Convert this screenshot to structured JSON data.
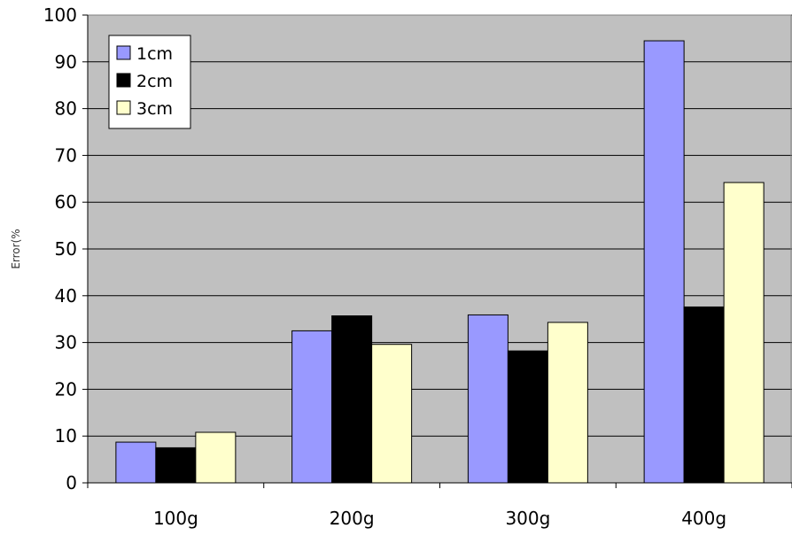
{
  "chart_data": {
    "type": "bar",
    "title": "",
    "xlabel": "",
    "ylabel": "Error(%",
    "categories": [
      "100g",
      "200g",
      "300g",
      "400g"
    ],
    "series": [
      {
        "name": "1cm",
        "color": "#9999ff",
        "values": [
          8.7,
          32.5,
          35.9,
          94.5
        ]
      },
      {
        "name": "2cm",
        "color": "#000000",
        "values": [
          7.5,
          35.7,
          28.2,
          37.6
        ]
      },
      {
        "name": "3cm",
        "color": "#ffffcc",
        "values": [
          10.8,
          29.6,
          34.3,
          64.2
        ]
      }
    ],
    "ylim": [
      0,
      100
    ],
    "yticks": [
      0,
      10,
      20,
      30,
      40,
      50,
      60,
      70,
      80,
      90,
      100
    ],
    "grid": true,
    "legend_position": "top-left",
    "plot_background": "#c0c0c0"
  }
}
